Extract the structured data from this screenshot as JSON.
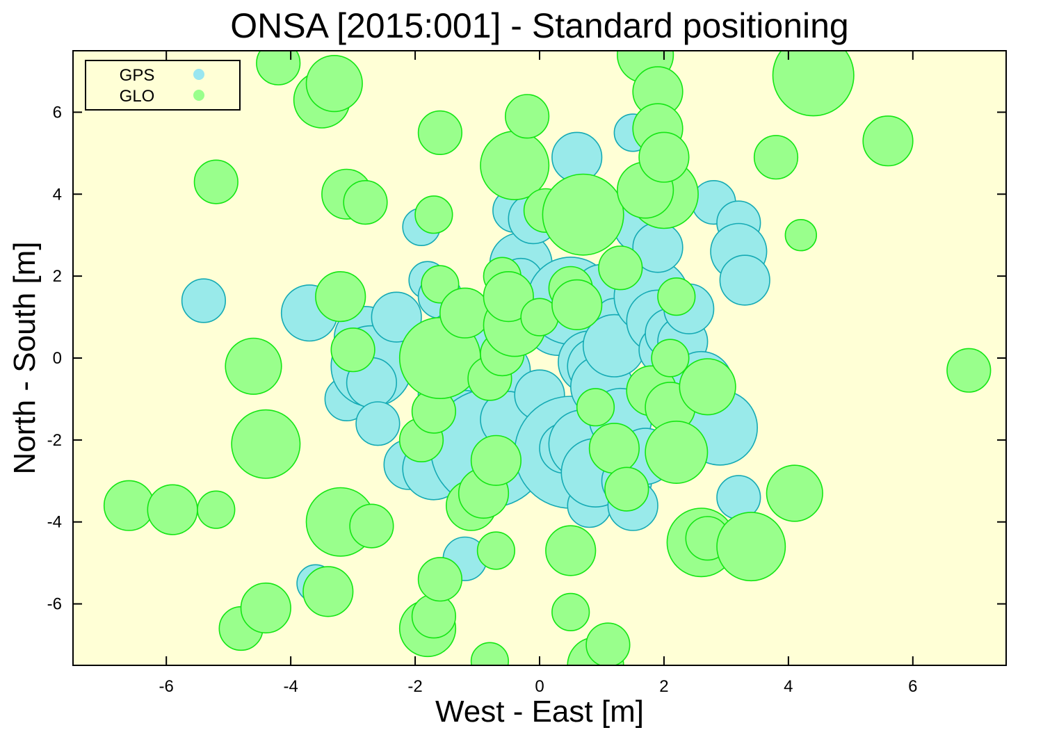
{
  "chart_data": {
    "type": "scatter",
    "title": "ONSA [2015:001] - Standard positioning",
    "xlabel": "West - East [m]",
    "ylabel": "North - South [m]",
    "xlim": [
      -7.5,
      7.5
    ],
    "ylim": [
      -7.5,
      7.5
    ],
    "x_ticks": [
      "-6",
      "-4",
      "-2",
      "0",
      "2",
      "4",
      "6"
    ],
    "y_ticks": [
      "-6",
      "-4",
      "-2",
      "0",
      "2",
      "4",
      "6"
    ],
    "grid": false,
    "legend_position": "top-left",
    "colors": {
      "plot_background": "#ffffd6",
      "gps_fill": "#99eaea",
      "gps_stroke": "#14aab4",
      "glo_fill": "#99ff8c",
      "glo_stroke": "#14e614",
      "legend_gps_marker": "#99e6f0",
      "legend_glo_marker": "#99ff8c"
    },
    "series": [
      {
        "name": "GPS",
        "points": [
          {
            "x": -5.4,
            "y": 1.4,
            "s": 0.35
          },
          {
            "x": -3.7,
            "y": 1.1,
            "s": 0.45
          },
          {
            "x": -3.1,
            "y": -1.0,
            "s": 0.35
          },
          {
            "x": -2.8,
            "y": 0.5,
            "s": 0.5
          },
          {
            "x": -2.7,
            "y": -0.2,
            "s": 0.65
          },
          {
            "x": -2.7,
            "y": -0.6,
            "s": 0.4
          },
          {
            "x": -2.6,
            "y": -1.6,
            "s": 0.35
          },
          {
            "x": -2.3,
            "y": 1.0,
            "s": 0.4
          },
          {
            "x": -2.1,
            "y": -2.6,
            "s": 0.4
          },
          {
            "x": -1.9,
            "y": 3.2,
            "s": 0.3
          },
          {
            "x": -1.8,
            "y": 1.9,
            "s": 0.3
          },
          {
            "x": -1.7,
            "y": -2.7,
            "s": 0.5
          },
          {
            "x": -1.6,
            "y": 1.5,
            "s": 0.35
          },
          {
            "x": -1.4,
            "y": 0.5,
            "s": 0.4
          },
          {
            "x": -1.5,
            "y": -0.9,
            "s": 0.45
          },
          {
            "x": -1.2,
            "y": -1.4,
            "s": 0.4
          },
          {
            "x": -1.2,
            "y": -4.9,
            "s": 0.35
          },
          {
            "x": -1.0,
            "y": 0.3,
            "s": 0.3
          },
          {
            "x": -0.8,
            "y": -2.2,
            "s": 0.95
          },
          {
            "x": -0.6,
            "y": -0.3,
            "s": 0.45
          },
          {
            "x": -0.5,
            "y": -1.5,
            "s": 0.45
          },
          {
            "x": -0.3,
            "y": 2.3,
            "s": 0.5
          },
          {
            "x": -0.3,
            "y": 1.9,
            "s": 0.35
          },
          {
            "x": -0.4,
            "y": 3.6,
            "s": 0.35
          },
          {
            "x": -0.1,
            "y": 3.4,
            "s": 0.4
          },
          {
            "x": 0.0,
            "y": -0.9,
            "s": 0.4
          },
          {
            "x": 0.3,
            "y": 0.9,
            "s": 0.55
          },
          {
            "x": 0.5,
            "y": 1.4,
            "s": 0.7
          },
          {
            "x": 0.5,
            "y": -2.3,
            "s": 0.9
          },
          {
            "x": 0.4,
            "y": -2.2,
            "s": 0.4
          },
          {
            "x": 0.6,
            "y": 4.9,
            "s": 0.4
          },
          {
            "x": 0.7,
            "y": -2.1,
            "s": 0.55
          },
          {
            "x": 0.8,
            "y": -0.1,
            "s": 0.5
          },
          {
            "x": 0.9,
            "y": -0.2,
            "s": 0.45
          },
          {
            "x": 0.8,
            "y": -3.6,
            "s": 0.35
          },
          {
            "x": 0.9,
            "y": -2.8,
            "s": 0.55
          },
          {
            "x": 1.0,
            "y": -0.7,
            "s": 0.5
          },
          {
            "x": 1.0,
            "y": 1.6,
            "s": 0.45
          },
          {
            "x": 1.2,
            "y": 1.0,
            "s": 0.3
          },
          {
            "x": 1.2,
            "y": 0.3,
            "s": 0.5
          },
          {
            "x": 1.3,
            "y": -1.5,
            "s": 0.5
          },
          {
            "x": 1.4,
            "y": -3.0,
            "s": 0.4
          },
          {
            "x": 1.5,
            "y": -3.6,
            "s": 0.4
          },
          {
            "x": 1.5,
            "y": 5.5,
            "s": 0.3
          },
          {
            "x": 1.6,
            "y": 3.2,
            "s": 0.4
          },
          {
            "x": 1.7,
            "y": -2.4,
            "s": 0.45
          },
          {
            "x": 1.8,
            "y": 1.5,
            "s": 0.6
          },
          {
            "x": 1.9,
            "y": 0.9,
            "s": 0.5
          },
          {
            "x": 1.9,
            "y": 2.7,
            "s": 0.4
          },
          {
            "x": 2.0,
            "y": 0.2,
            "s": 0.4
          },
          {
            "x": 2.1,
            "y": 0.6,
            "s": 0.4
          },
          {
            "x": 2.3,
            "y": 0.4,
            "s": 0.4
          },
          {
            "x": 2.4,
            "y": 1.2,
            "s": 0.4
          },
          {
            "x": 2.5,
            "y": -1.2,
            "s": 0.45
          },
          {
            "x": 2.6,
            "y": -0.6,
            "s": 0.5
          },
          {
            "x": 2.8,
            "y": 3.8,
            "s": 0.35
          },
          {
            "x": 2.9,
            "y": -1.7,
            "s": 0.6
          },
          {
            "x": 3.2,
            "y": 3.3,
            "s": 0.35
          },
          {
            "x": 3.2,
            "y": 2.6,
            "s": 0.45
          },
          {
            "x": 3.3,
            "y": 1.9,
            "s": 0.4
          },
          {
            "x": 3.2,
            "y": -3.4,
            "s": 0.35
          },
          {
            "x": -3.6,
            "y": -5.5,
            "s": 0.3
          }
        ]
      },
      {
        "name": "GLO",
        "points": [
          {
            "x": -6.6,
            "y": -3.6,
            "s": 0.4
          },
          {
            "x": -5.9,
            "y": -3.7,
            "s": 0.4
          },
          {
            "x": -5.2,
            "y": -3.7,
            "s": 0.3
          },
          {
            "x": -5.2,
            "y": 4.3,
            "s": 0.35
          },
          {
            "x": -4.8,
            "y": -6.6,
            "s": 0.35
          },
          {
            "x": -4.6,
            "y": -0.2,
            "s": 0.45
          },
          {
            "x": -4.4,
            "y": -2.1,
            "s": 0.55
          },
          {
            "x": -4.4,
            "y": -6.1,
            "s": 0.4
          },
          {
            "x": -4.2,
            "y": 7.2,
            "s": 0.35
          },
          {
            "x": -3.5,
            "y": 6.3,
            "s": 0.45
          },
          {
            "x": -3.3,
            "y": 6.7,
            "s": 0.45
          },
          {
            "x": -3.4,
            "y": -5.7,
            "s": 0.4
          },
          {
            "x": -3.2,
            "y": 1.5,
            "s": 0.4
          },
          {
            "x": -3.1,
            "y": 4.0,
            "s": 0.4
          },
          {
            "x": -3.2,
            "y": -4.0,
            "s": 0.55
          },
          {
            "x": -2.7,
            "y": -4.1,
            "s": 0.35
          },
          {
            "x": -2.8,
            "y": 3.8,
            "s": 0.35
          },
          {
            "x": -3.0,
            "y": 0.2,
            "s": 0.35
          },
          {
            "x": -1.8,
            "y": -6.6,
            "s": 0.45
          },
          {
            "x": -1.7,
            "y": -6.3,
            "s": 0.35
          },
          {
            "x": -1.6,
            "y": -5.4,
            "s": 0.35
          },
          {
            "x": -1.9,
            "y": -2.0,
            "s": 0.35
          },
          {
            "x": -1.7,
            "y": -1.3,
            "s": 0.35
          },
          {
            "x": -1.6,
            "y": 5.5,
            "s": 0.35
          },
          {
            "x": -1.7,
            "y": 3.5,
            "s": 0.3
          },
          {
            "x": -1.6,
            "y": 1.8,
            "s": 0.3
          },
          {
            "x": -1.6,
            "y": 0.0,
            "s": 0.65
          },
          {
            "x": -1.2,
            "y": 1.1,
            "s": 0.4
          },
          {
            "x": -1.1,
            "y": -3.6,
            "s": 0.4
          },
          {
            "x": -0.9,
            "y": -3.3,
            "s": 0.4
          },
          {
            "x": -0.8,
            "y": -0.5,
            "s": 0.35
          },
          {
            "x": -0.7,
            "y": -4.7,
            "s": 0.3
          },
          {
            "x": -0.7,
            "y": -2.5,
            "s": 0.4
          },
          {
            "x": -0.8,
            "y": -7.4,
            "s": 0.3
          },
          {
            "x": -0.6,
            "y": 0.1,
            "s": 0.35
          },
          {
            "x": -0.6,
            "y": 2.0,
            "s": 0.3
          },
          {
            "x": -0.4,
            "y": 4.7,
            "s": 0.55
          },
          {
            "x": -0.2,
            "y": 5.9,
            "s": 0.35
          },
          {
            "x": -0.4,
            "y": 0.8,
            "s": 0.5
          },
          {
            "x": -0.5,
            "y": 1.5,
            "s": 0.4
          },
          {
            "x": 0.0,
            "y": 1.0,
            "s": 0.3
          },
          {
            "x": 0.1,
            "y": 3.6,
            "s": 0.35
          },
          {
            "x": 0.7,
            "y": 3.5,
            "s": 0.65
          },
          {
            "x": 0.5,
            "y": 1.7,
            "s": 0.35
          },
          {
            "x": 0.6,
            "y": 1.3,
            "s": 0.4
          },
          {
            "x": 0.5,
            "y": -4.7,
            "s": 0.4
          },
          {
            "x": 0.5,
            "y": -6.2,
            "s": 0.3
          },
          {
            "x": 0.9,
            "y": -7.5,
            "s": 0.45
          },
          {
            "x": 1.1,
            "y": -7.0,
            "s": 0.35
          },
          {
            "x": 0.9,
            "y": -1.2,
            "s": 0.3
          },
          {
            "x": 1.2,
            "y": -2.2,
            "s": 0.4
          },
          {
            "x": 1.3,
            "y": 2.2,
            "s": 0.35
          },
          {
            "x": 1.4,
            "y": -3.2,
            "s": 0.35
          },
          {
            "x": 1.7,
            "y": 7.4,
            "s": 0.45
          },
          {
            "x": 1.9,
            "y": 6.5,
            "s": 0.4
          },
          {
            "x": 1.9,
            "y": 5.6,
            "s": 0.4
          },
          {
            "x": 2.0,
            "y": 4.0,
            "s": 0.55
          },
          {
            "x": 1.7,
            "y": 4.1,
            "s": 0.45
          },
          {
            "x": 2.0,
            "y": 4.9,
            "s": 0.4
          },
          {
            "x": 1.8,
            "y": -0.8,
            "s": 0.4
          },
          {
            "x": 2.1,
            "y": -1.2,
            "s": 0.4
          },
          {
            "x": 2.1,
            "y": 0.0,
            "s": 0.3
          },
          {
            "x": 2.2,
            "y": 1.5,
            "s": 0.3
          },
          {
            "x": 2.2,
            "y": -2.3,
            "s": 0.5
          },
          {
            "x": 2.7,
            "y": -0.7,
            "s": 0.45
          },
          {
            "x": 2.6,
            "y": -4.5,
            "s": 0.55
          },
          {
            "x": 2.7,
            "y": -4.4,
            "s": 0.35
          },
          {
            "x": 3.4,
            "y": -4.6,
            "s": 0.55
          },
          {
            "x": 3.8,
            "y": 4.9,
            "s": 0.35
          },
          {
            "x": 4.1,
            "y": -3.3,
            "s": 0.45
          },
          {
            "x": 4.2,
            "y": 3.0,
            "s": 0.25
          },
          {
            "x": 4.4,
            "y": 6.9,
            "s": 0.65
          },
          {
            "x": 5.6,
            "y": 5.3,
            "s": 0.4
          },
          {
            "x": 6.9,
            "y": -0.3,
            "s": 0.35
          }
        ]
      }
    ]
  }
}
